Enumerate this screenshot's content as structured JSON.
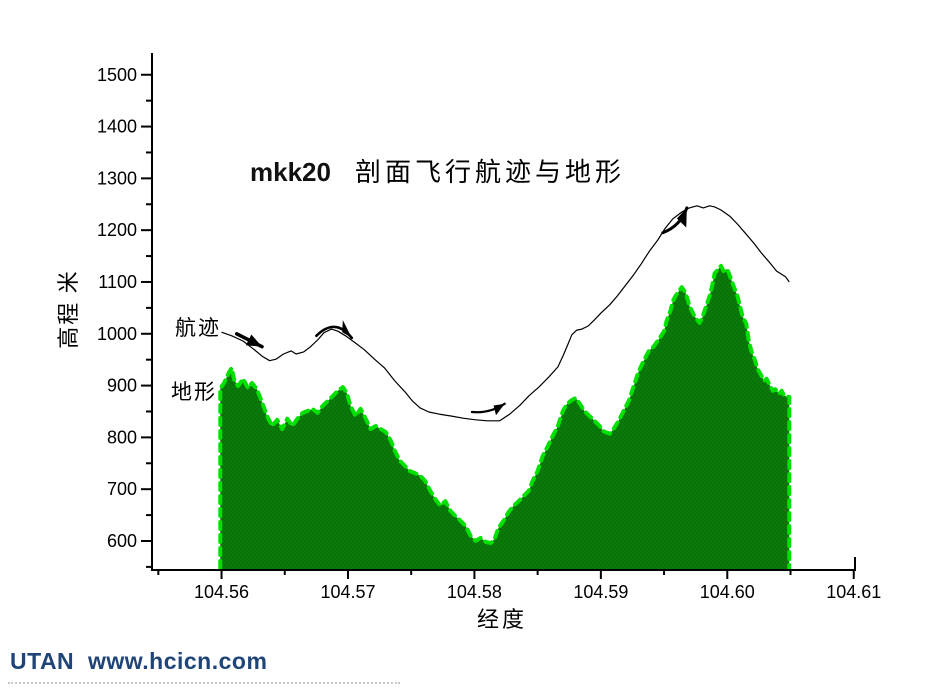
{
  "page": {
    "background": "#ffffff"
  },
  "footer": {
    "text": "UTAN  www.hcicn.com",
    "color": "#1F4477"
  },
  "chart_data": {
    "type": "area",
    "title_prefix": "mkk20",
    "title": "剖面飞行航迹与地形",
    "xlabel": "经度",
    "ylabel": "高程 米",
    "xlim": [
      104.5545,
      104.6101
    ],
    "ylim": [
      544,
      1542
    ],
    "grid": false,
    "legend_position": "inline-labels",
    "colors": {
      "terrain_fill": "#0a7a0a",
      "terrain_fill_alt": "#076b07",
      "terrain_edge": "#00e100",
      "flight_path": "#000000",
      "axis": "#000000"
    },
    "x_ticks": {
      "values": [
        104.56,
        104.57,
        104.58,
        104.59,
        104.6,
        104.61
      ],
      "labels": [
        "104.56",
        "104.57",
        "104.58",
        "104.59",
        "104.60",
        "104.61"
      ],
      "minor": [
        104.555,
        104.565,
        104.575,
        104.585,
        104.595,
        104.605
      ]
    },
    "y_ticks": {
      "values": [
        600,
        700,
        800,
        900,
        1000,
        1100,
        1200,
        1300,
        1400,
        1500
      ],
      "labels": [
        "600",
        "700",
        "800",
        "900",
        "1000",
        "1100",
        "1200",
        "1300",
        "1400",
        "1500"
      ],
      "minor": [
        550,
        650,
        750,
        850,
        950,
        1050,
        1150,
        1250,
        1350,
        1450,
        1550
      ]
    },
    "series": [
      {
        "name": "航迹",
        "type": "line",
        "x": [
          104.56,
          104.5608,
          104.5617,
          104.5625,
          104.5632,
          104.5638,
          104.5643,
          104.5649,
          104.5655,
          104.5659,
          104.5665,
          104.567,
          104.5676,
          104.5681,
          104.5687,
          104.5692,
          104.5698,
          104.5705,
          104.5713,
          104.5721,
          104.5729,
          104.5737,
          104.5745,
          104.5751,
          104.5757,
          104.5764,
          104.5772,
          104.5782,
          104.5791,
          104.5801,
          104.581,
          104.582,
          104.5828,
          104.5836,
          104.5843,
          104.5851,
          104.5859,
          104.5866,
          104.587,
          104.5874,
          104.5877,
          104.5881,
          104.5885,
          104.589,
          104.5895,
          104.59,
          104.5907,
          104.5913,
          104.5919,
          104.5926,
          104.5932,
          104.5938,
          104.5945,
          104.5951,
          104.5957,
          104.5964,
          104.597,
          104.5976,
          104.5981,
          104.5986,
          104.599,
          104.5995,
          104.6002,
          104.6008,
          104.6014,
          104.6021,
          104.6027,
          104.6033,
          104.6039,
          104.6046,
          104.6049
        ],
        "y": [
          1003,
          996,
          986,
          971,
          957,
          948,
          951,
          961,
          967,
          961,
          965,
          974,
          988,
          1002,
          1009,
          1005,
          996,
          984,
          969,
          951,
          934,
          909,
          888,
          870,
          857,
          849,
          845,
          841,
          837,
          834,
          832,
          832,
          845,
          862,
          880,
          897,
          917,
          936,
          957,
          980,
          998,
          1007,
          1009,
          1015,
          1027,
          1040,
          1056,
          1073,
          1092,
          1114,
          1135,
          1158,
          1181,
          1204,
          1222,
          1235,
          1243,
          1247,
          1243,
          1247,
          1245,
          1239,
          1227,
          1212,
          1195,
          1175,
          1156,
          1139,
          1121,
          1110,
          1100
        ]
      },
      {
        "name": "地形",
        "type": "area",
        "baseline": 544,
        "x": [
          104.5599,
          104.5602,
          104.5606,
          104.5608,
          104.561,
          104.5613,
          104.5617,
          104.5621,
          104.5624,
          104.5628,
          104.5632,
          104.5636,
          104.564,
          104.5644,
          104.5648,
          104.5652,
          104.5656,
          104.566,
          104.5664,
          104.5668,
          104.5672,
          104.5676,
          104.568,
          104.5684,
          104.5688,
          104.5692,
          104.5696,
          104.5699,
          104.5702,
          104.5706,
          104.571,
          104.5714,
          104.5718,
          104.5722,
          104.5726,
          104.573,
          104.5734,
          104.5737,
          104.5741,
          104.5745,
          104.5749,
          104.5753,
          104.5757,
          104.5761,
          104.5765,
          104.5769,
          104.5773,
          104.5777,
          104.5781,
          104.5785,
          104.5789,
          104.5793,
          104.5797,
          104.5801,
          104.5805,
          104.5809,
          104.5813,
          104.5816,
          104.5819,
          104.5823,
          104.5827,
          104.5831,
          104.5835,
          104.5839,
          104.5843,
          104.5846,
          104.585,
          104.5854,
          104.5858,
          104.5862,
          104.5866,
          104.587,
          104.5873,
          104.5877,
          104.588,
          104.5883,
          104.5887,
          104.5891,
          104.5895,
          104.5899,
          104.5902,
          104.5907,
          104.591,
          104.5914,
          104.5918,
          104.5922,
          104.5926,
          104.593,
          104.5934,
          104.5938,
          104.5942,
          104.5946,
          104.595,
          104.5952,
          104.5955,
          104.5957,
          104.5959,
          104.5962,
          104.5964,
          104.5967,
          104.597,
          104.5974,
          104.5978,
          104.598,
          104.5982,
          104.5986,
          104.5988,
          104.599,
          104.5993,
          104.5995,
          104.5997,
          104.6,
          104.6002,
          104.6005,
          104.6008,
          104.601,
          104.6012,
          104.6015,
          104.6017,
          104.6019,
          104.6022,
          104.6024,
          104.6027,
          104.6029,
          104.6031,
          104.6034,
          104.6036,
          104.6038,
          104.6041,
          104.6043,
          104.6045,
          104.6049
        ],
        "y": [
          895,
          905,
          926,
          934,
          911,
          899,
          913,
          895,
          905,
          893,
          868,
          841,
          822,
          834,
          816,
          836,
          822,
          836,
          847,
          851,
          855,
          847,
          861,
          870,
          880,
          890,
          897,
          886,
          861,
          841,
          855,
          836,
          816,
          822,
          816,
          810,
          793,
          774,
          755,
          745,
          735,
          731,
          726,
          716,
          697,
          681,
          668,
          677,
          658,
          648,
          639,
          629,
          610,
          600,
          606,
          598,
          596,
          604,
          625,
          639,
          656,
          668,
          677,
          687,
          697,
          716,
          735,
          764,
          783,
          803,
          822,
          851,
          864,
          872,
          876,
          866,
          851,
          841,
          832,
          822,
          812,
          807,
          816,
          832,
          851,
          870,
          899,
          928,
          948,
          967,
          976,
          990,
          1005,
          1025,
          1044,
          1063,
          1073,
          1083,
          1090,
          1079,
          1054,
          1034,
          1021,
          1029,
          1044,
          1073,
          1092,
          1117,
          1125,
          1131,
          1121,
          1125,
          1112,
          1092,
          1073,
          1054,
          1034,
          1019,
          986,
          967,
          948,
          932,
          919,
          909,
          913,
          899,
          890,
          893,
          884,
          890,
          880,
          878
        ]
      }
    ],
    "arrows": [
      {
        "x1": 104.5612,
        "y1": 1000,
        "x2": 104.5632,
        "y2": 975,
        "curve": 0,
        "width": 3.5,
        "head": [
          15,
          6
        ]
      },
      {
        "x1": 104.5675,
        "y1": 996,
        "x2": 104.5703,
        "y2": 992,
        "curve": -20,
        "width": 2.6,
        "head": [
          15,
          6
        ]
      },
      {
        "x1": 104.5798,
        "y1": 849,
        "x2": 104.5824,
        "y2": 865,
        "curve": 6,
        "width": 2.2,
        "head": [
          12,
          5
        ]
      },
      {
        "x1": 104.5949,
        "y1": 1195,
        "x2": 104.5968,
        "y2": 1243,
        "curve": 8,
        "width": 3,
        "head": [
          16,
          6.5
        ]
      }
    ]
  }
}
